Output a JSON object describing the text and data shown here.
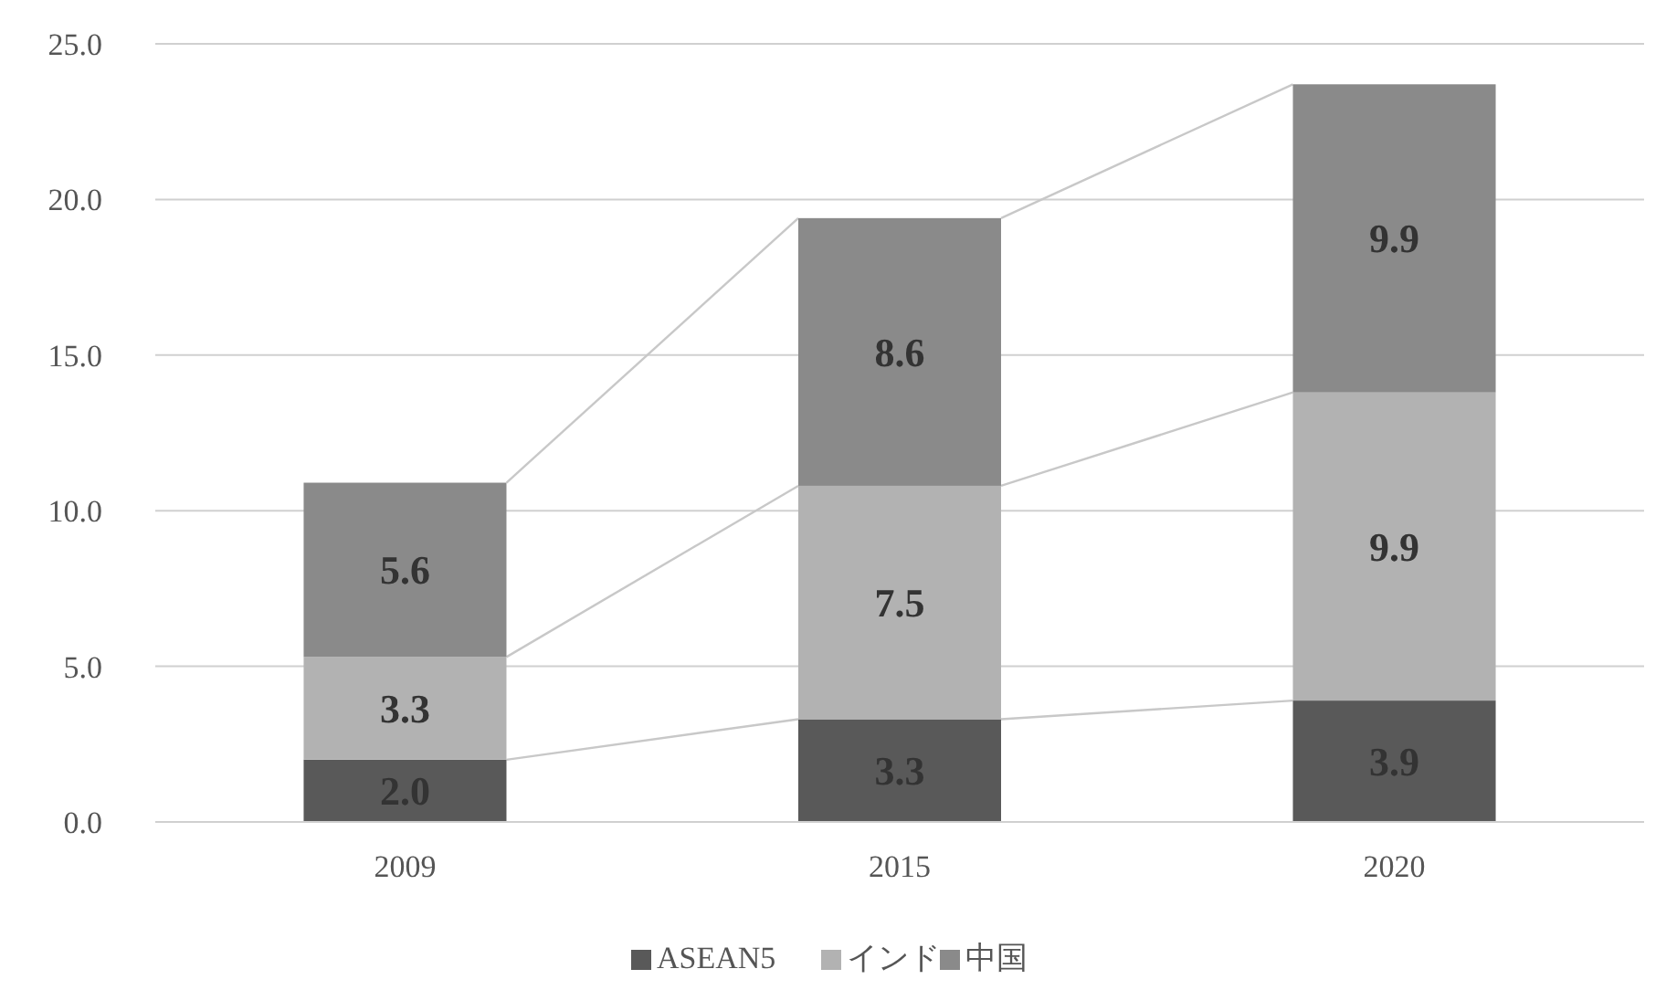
{
  "chart_data": {
    "type": "bar",
    "stacked": true,
    "categories": [
      "2009",
      "2015",
      "2020"
    ],
    "series": [
      {
        "name": "ASEAN5",
        "color": "#595959",
        "values": [
          2.0,
          3.3,
          3.9
        ],
        "value_labels": [
          "2.0",
          "3.3",
          "3.9"
        ]
      },
      {
        "name": "インド",
        "color": "#b2b2b2",
        "values": [
          3.3,
          7.5,
          9.9
        ],
        "value_labels": [
          "3.3",
          "7.5",
          "9.9"
        ]
      },
      {
        "name": "中国",
        "color": "#8a8a8a",
        "values": [
          5.6,
          8.6,
          9.9
        ],
        "value_labels": [
          "5.6",
          "8.6",
          "9.9"
        ]
      }
    ],
    "ylim": [
      0,
      25
    ],
    "yticks": [
      {
        "value": 0,
        "label": "0.0"
      },
      {
        "value": 5,
        "label": "5.0"
      },
      {
        "value": 10,
        "label": "10.0"
      },
      {
        "value": 15,
        "label": "15.0"
      },
      {
        "value": 20,
        "label": "20.0"
      },
      {
        "value": 25,
        "label": "25.0"
      }
    ],
    "grid": "y",
    "legend": "bottom"
  }
}
